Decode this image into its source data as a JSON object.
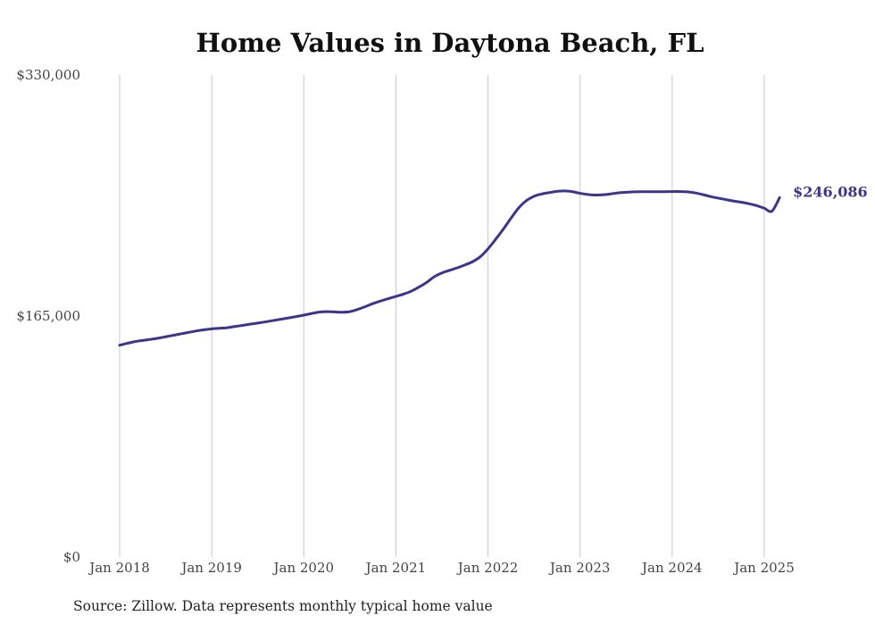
{
  "chart_data": {
    "type": "line",
    "title": "Home Values in Daytona Beach, FL",
    "xlabel": "",
    "ylabel": "",
    "source_note": "Source: Zillow. Data represents monthly typical home value",
    "x_ticks": [
      "Jan 2018",
      "Jan 2019",
      "Jan 2020",
      "Jan 2021",
      "Jan 2022",
      "Jan 2023",
      "Jan 2024",
      "Jan 2025"
    ],
    "x_tick_dates": [
      "2018-01",
      "2019-01",
      "2020-01",
      "2021-01",
      "2022-01",
      "2023-01",
      "2024-01",
      "2025-01"
    ],
    "y_ticks": [
      "$0",
      "$165,000",
      "$330,000"
    ],
    "y_tick_values": [
      0,
      165000,
      330000
    ],
    "ylim": [
      0,
      330000
    ],
    "grid": "vertical",
    "line_color": "#3b3498",
    "end_label": "$246,086",
    "series": [
      {
        "x": [
          "2018-01",
          "2018-02",
          "2018-03",
          "2018-04",
          "2018-05",
          "2018-06",
          "2018-07",
          "2018-08",
          "2018-09",
          "2018-10",
          "2018-11",
          "2018-12",
          "2019-01",
          "2019-02",
          "2019-03",
          "2019-04",
          "2019-05",
          "2019-06",
          "2019-07",
          "2019-08",
          "2019-09",
          "2019-10",
          "2019-11",
          "2019-12",
          "2020-01",
          "2020-02",
          "2020-03",
          "2020-04",
          "2020-05",
          "2020-06",
          "2020-07",
          "2020-08",
          "2020-09",
          "2020-10",
          "2020-11",
          "2020-12",
          "2021-01",
          "2021-02",
          "2021-03",
          "2021-04",
          "2021-05",
          "2021-06",
          "2021-07",
          "2021-08",
          "2021-09",
          "2021-10",
          "2021-11",
          "2021-12",
          "2022-01",
          "2022-02",
          "2022-03",
          "2022-04",
          "2022-05",
          "2022-06",
          "2022-07",
          "2022-08",
          "2022-09",
          "2022-10",
          "2022-11",
          "2022-12",
          "2023-01",
          "2023-02",
          "2023-03",
          "2023-04",
          "2023-05",
          "2023-06",
          "2023-07",
          "2023-08",
          "2023-09",
          "2023-10",
          "2023-11",
          "2023-12",
          "2024-01",
          "2024-02",
          "2024-03",
          "2024-04",
          "2024-05",
          "2024-06",
          "2024-07",
          "2024-08",
          "2024-09",
          "2024-10",
          "2024-11",
          "2024-12",
          "2025-01",
          "2025-02",
          "2025-03"
        ],
        "values": [
          145000,
          146300,
          147500,
          148300,
          149000,
          149800,
          150800,
          151800,
          152800,
          153800,
          154800,
          155600,
          156200,
          156600,
          157000,
          157800,
          158600,
          159400,
          160200,
          161000,
          161900,
          162800,
          163700,
          164600,
          165600,
          166700,
          167700,
          168000,
          167800,
          167600,
          168000,
          169500,
          171400,
          173500,
          175300,
          176900,
          178400,
          180000,
          182000,
          184800,
          188000,
          191900,
          194500,
          196300,
          198000,
          200000,
          202200,
          205600,
          211000,
          217500,
          224500,
          232000,
          239000,
          244000,
          247000,
          248500,
          249500,
          250300,
          250600,
          250100,
          249000,
          248200,
          247800,
          248000,
          248600,
          249300,
          249700,
          250000,
          250100,
          250100,
          250100,
          250100,
          250200,
          250200,
          250000,
          249300,
          248100,
          246800,
          245700,
          244700,
          243700,
          242900,
          241900,
          240600,
          238800,
          236800,
          246086
        ]
      }
    ]
  }
}
